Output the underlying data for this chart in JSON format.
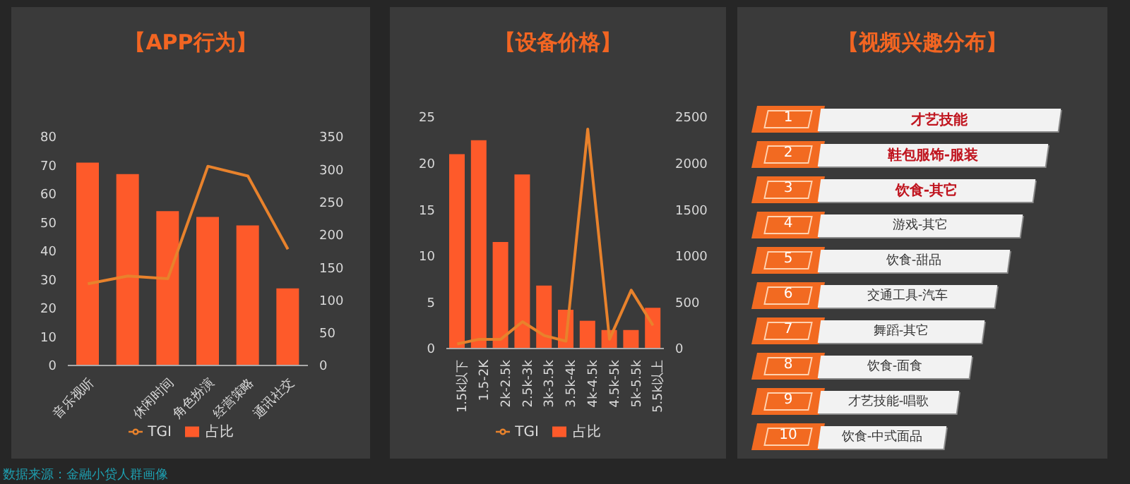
{
  "chart_data": [
    {
      "type": "bar",
      "title": "【APP行为】",
      "categories": [
        "音乐视听",
        null,
        "休闲时间",
        "角色扮演",
        "经营策略",
        "通讯社交"
      ],
      "series": [
        {
          "name": "占比",
          "type": "bar",
          "color": "#fe5a2a",
          "values": [
            71,
            67,
            54,
            52,
            49,
            27
          ]
        },
        {
          "name": "TGI",
          "type": "line",
          "axis": "y2",
          "color": "#e8822c",
          "values": [
            125,
            137,
            133,
            305,
            290,
            178
          ]
        }
      ],
      "ylim": [
        0,
        80
      ],
      "yticks": [
        0,
        10,
        20,
        30,
        40,
        50,
        60,
        70,
        80
      ],
      "y2lim": [
        0,
        350
      ],
      "y2ticks": [
        0,
        50,
        100,
        150,
        200,
        250,
        300,
        350
      ],
      "legend": "bottom",
      "marker": "none",
      "annotations": [
        "数据来源：金融小贷人群画像"
      ]
    },
    {
      "type": "bar",
      "title": "【设备价格】",
      "categories": [
        "1.5k以下",
        "1.5-2K",
        "2k-2.5k",
        "2.5k-3k",
        "3k-3.5k",
        "3.5k-4k",
        "4k-4.5k",
        "4.5k-5k",
        "5k-5.5k",
        "5.5k以上"
      ],
      "series": [
        {
          "name": "占比",
          "type": "bar",
          "color": "#fe5a2a",
          "values": [
            21,
            22.5,
            11.5,
            18.8,
            6.8,
            4.2,
            3,
            2,
            2,
            4.4
          ]
        },
        {
          "name": "TGI",
          "type": "line",
          "axis": "y2",
          "color": "#e8822c",
          "values": [
            50,
            100,
            100,
            290,
            140,
            80,
            2370,
            100,
            630,
            250
          ]
        }
      ],
      "ylim": [
        0,
        25
      ],
      "yticks": [
        0,
        5,
        10,
        15,
        20,
        25
      ],
      "y2lim": [
        0,
        2500
      ],
      "y2ticks": [
        0,
        500,
        1000,
        1500,
        2000,
        2500
      ],
      "legend": "bottom",
      "marker": "none"
    },
    {
      "type": "other",
      "title": "【视频兴趣分布】",
      "data_labels": true,
      "color": "#f26a21",
      "categories": [
        "才艺技能",
        "鞋包服饰-服装",
        "饮食-其它",
        "游戏-其它",
        "饮食-甜品",
        "交通工具-汽车",
        "舞蹈-其它",
        "饮食-面食",
        "才艺技能-唱歌",
        "饮食-中式面品"
      ],
      "values": [
        1,
        2,
        3,
        4,
        5,
        6,
        7,
        8,
        9,
        10
      ]
    }
  ]
}
